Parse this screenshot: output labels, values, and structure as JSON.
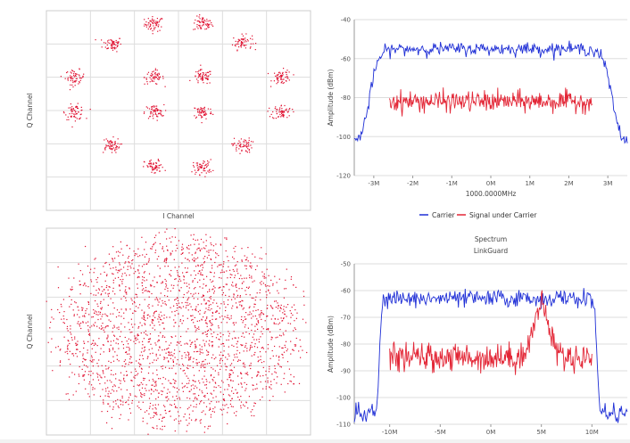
{
  "colors": {
    "carrier": "#1f2fd6",
    "under": "#e32636",
    "points": "#e01030",
    "grid": "#dddddd",
    "frame": "#cccccc"
  },
  "chart_data": [
    {
      "type": "scatter",
      "title": "",
      "xlabel": "I Channel",
      "ylabel": "Q Channel",
      "grid": true,
      "xlim": [
        -6,
        6
      ],
      "ylim": [
        -6,
        6
      ],
      "constellation_centers": [
        [
          -1.1,
          5.2
        ],
        [
          1.1,
          5.2
        ],
        [
          -3.0,
          4.0
        ],
        [
          2.9,
          4.1
        ],
        [
          -4.7,
          2.0
        ],
        [
          -1.1,
          2.0
        ],
        [
          1.1,
          2.0
        ],
        [
          4.7,
          2.0
        ],
        [
          -4.7,
          -0.1
        ],
        [
          -1.1,
          -0.1
        ],
        [
          1.1,
          -0.1
        ],
        [
          4.7,
          -0.1
        ],
        [
          -3.1,
          -2.1
        ],
        [
          2.9,
          -2.1
        ],
        [
          -1.1,
          -3.4
        ],
        [
          1.1,
          -3.4
        ]
      ],
      "points_per_cluster": 60,
      "spread": 0.22
    },
    {
      "type": "line",
      "title": "",
      "xlabel": "1000.0000MHz",
      "ylabel": "Amplitude (dBm)",
      "x_tick_labels": [
        "-3M",
        "-2M",
        "-1M",
        "0M",
        "1M",
        "2M",
        "3M"
      ],
      "x_ticks": [
        -3,
        -2,
        -1,
        0,
        1,
        2,
        3
      ],
      "xlim": [
        -3.5,
        3.5
      ],
      "ylim": [
        -120,
        -40
      ],
      "y_ticks": [
        -40,
        -60,
        -80,
        -100,
        -120
      ],
      "legend": [
        "Carrier",
        "Signal under Carrier"
      ],
      "legend_placement": "bottom",
      "series": [
        {
          "name": "Carrier",
          "x_range": [
            -3.5,
            3.5
          ],
          "floor": -104,
          "level": -55,
          "edges": [
            -3.1,
            3.1
          ]
        },
        {
          "name": "Signal under Carrier",
          "x_range": [
            -2.6,
            2.6
          ],
          "level": -82
        }
      ]
    },
    {
      "type": "scatter",
      "title": "",
      "xlabel": "",
      "ylabel": "Q Channel",
      "grid": true,
      "xlim": [
        -6,
        6
      ],
      "ylim": [
        -6,
        6
      ],
      "rings": [
        {
          "radius": 4.8,
          "clusters": 16
        },
        {
          "radius": 3.3,
          "clusters": 12
        },
        {
          "radius": 1.6,
          "clusters": 8
        }
      ],
      "spread": 0.6
    },
    {
      "type": "line",
      "title": "Spectrum",
      "subtitle": "LinkGuard",
      "xlabel": "",
      "ylabel": "Amplitude (dBm)",
      "x_tick_labels": [
        "-10M",
        "-5M",
        "0M",
        "5M",
        "10M"
      ],
      "x_ticks": [
        -10,
        -5,
        0,
        5,
        10
      ],
      "xlim": [
        -13.5,
        13.5
      ],
      "ylim": [
        -110,
        -50
      ],
      "y_ticks": [
        -50,
        -60,
        -70,
        -80,
        -90,
        -100,
        -110
      ],
      "series": [
        {
          "name": "Carrier",
          "x_range": [
            -13.5,
            13.5
          ],
          "floor": -106,
          "level": -63,
          "edges": [
            -11,
            10.5
          ]
        },
        {
          "name": "Signal under Carrier",
          "x_range": [
            -10,
            10
          ],
          "level": -85,
          "bump_center": 5,
          "bump_level": -66
        }
      ]
    }
  ]
}
